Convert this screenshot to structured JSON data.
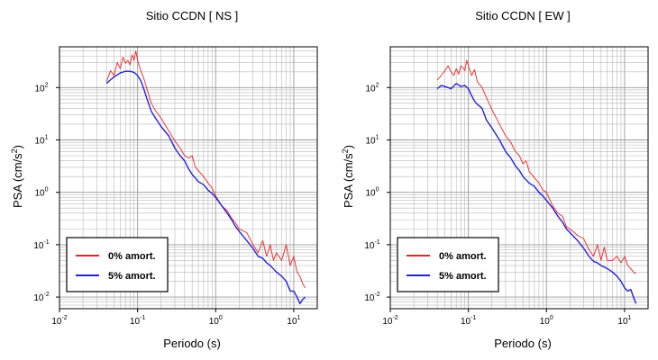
{
  "chart_data": [
    {
      "type": "line",
      "title": "Sitio CCDN [ NS ]",
      "xlabel": "Periodo (s)",
      "ylabel_main": "PSA (cm/s",
      "ylabel_sup": "2",
      "ylabel_close": ")",
      "xscale": "log",
      "yscale": "log",
      "xlim": [
        0.01,
        20
      ],
      "ylim": [
        0.006,
        600
      ],
      "grid": true,
      "legend_position": "bottom-left",
      "x_ticks": [
        {
          "base": "10",
          "exp": "-2"
        },
        {
          "base": "10",
          "exp": "-1"
        },
        {
          "base": "10",
          "exp": "0"
        },
        {
          "base": "10",
          "exp": "1"
        }
      ],
      "y_ticks": [
        {
          "base": "10",
          "exp": "-2"
        },
        {
          "base": "10",
          "exp": "-1"
        },
        {
          "base": "10",
          "exp": "0"
        },
        {
          "base": "10",
          "exp": "1"
        },
        {
          "base": "10",
          "exp": "2"
        }
      ],
      "series": [
        {
          "name": "0% amort.",
          "color": "#ee2222",
          "x": [
            0.04,
            0.045,
            0.05,
            0.055,
            0.06,
            0.065,
            0.07,
            0.075,
            0.08,
            0.085,
            0.09,
            0.095,
            0.1,
            0.11,
            0.12,
            0.13,
            0.15,
            0.17,
            0.2,
            0.25,
            0.3,
            0.35,
            0.4,
            0.45,
            0.5,
            0.55,
            0.6,
            0.7,
            0.8,
            0.9,
            1.0,
            1.2,
            1.4,
            1.6,
            1.8,
            2.0,
            2.5,
            3.0,
            3.5,
            4.0,
            4.5,
            5.0,
            5.5,
            6.0,
            7.0,
            8.0,
            9.0,
            10.0,
            11.0,
            12.0,
            13.0,
            14.0
          ],
          "y": [
            130,
            210,
            170,
            300,
            230,
            380,
            290,
            330,
            270,
            420,
            330,
            500,
            330,
            210,
            150,
            100,
            50,
            36,
            26,
            15,
            9.5,
            7,
            5,
            4.5,
            5,
            3,
            2.6,
            2.0,
            1.5,
            1.2,
            0.85,
            0.55,
            0.45,
            0.32,
            0.26,
            0.2,
            0.17,
            0.1,
            0.07,
            0.12,
            0.06,
            0.1,
            0.05,
            0.07,
            0.05,
            0.1,
            0.04,
            0.06,
            0.03,
            0.025,
            0.018,
            0.015
          ]
        },
        {
          "name": "5% amort.",
          "color": "#2222dd",
          "x": [
            0.04,
            0.045,
            0.05,
            0.06,
            0.07,
            0.08,
            0.09,
            0.1,
            0.11,
            0.12,
            0.13,
            0.15,
            0.17,
            0.2,
            0.25,
            0.3,
            0.35,
            0.4,
            0.45,
            0.5,
            0.6,
            0.7,
            0.8,
            0.9,
            1.0,
            1.2,
            1.4,
            1.6,
            1.8,
            2.0,
            2.5,
            3.0,
            3.5,
            4.0,
            4.5,
            5.0,
            6.0,
            7.0,
            8.0,
            9.0,
            10.0,
            11.0,
            12.0,
            13.0,
            14.0
          ],
          "y": [
            120,
            140,
            160,
            190,
            205,
            205,
            195,
            170,
            135,
            95,
            65,
            35,
            26,
            18,
            12,
            7,
            5,
            4,
            2.8,
            2.2,
            1.6,
            1.4,
            1.1,
            0.95,
            0.8,
            0.55,
            0.4,
            0.3,
            0.22,
            0.18,
            0.12,
            0.085,
            0.06,
            0.055,
            0.045,
            0.04,
            0.03,
            0.025,
            0.02,
            0.013,
            0.013,
            0.01,
            0.0075,
            0.009,
            0.01
          ]
        }
      ]
    },
    {
      "type": "line",
      "title": "Sitio CCDN [ EW ]",
      "xlabel": "Periodo (s)",
      "ylabel_main": "PSA (cm/s",
      "ylabel_sup": "2",
      "ylabel_close": ")",
      "xscale": "log",
      "yscale": "log",
      "xlim": [
        0.01,
        20
      ],
      "ylim": [
        0.006,
        600
      ],
      "grid": true,
      "legend_position": "bottom-left",
      "x_ticks": [
        {
          "base": "10",
          "exp": "-2"
        },
        {
          "base": "10",
          "exp": "-1"
        },
        {
          "base": "10",
          "exp": "0"
        },
        {
          "base": "10",
          "exp": "1"
        }
      ],
      "y_ticks": [
        {
          "base": "10",
          "exp": "-2"
        },
        {
          "base": "10",
          "exp": "-1"
        },
        {
          "base": "10",
          "exp": "0"
        },
        {
          "base": "10",
          "exp": "1"
        },
        {
          "base": "10",
          "exp": "2"
        }
      ],
      "series": [
        {
          "name": "0% amort.",
          "color": "#ee2222",
          "x": [
            0.04,
            0.045,
            0.05,
            0.055,
            0.06,
            0.065,
            0.07,
            0.075,
            0.08,
            0.085,
            0.09,
            0.095,
            0.1,
            0.11,
            0.12,
            0.13,
            0.15,
            0.17,
            0.2,
            0.25,
            0.3,
            0.35,
            0.4,
            0.45,
            0.5,
            0.55,
            0.6,
            0.7,
            0.8,
            0.9,
            1.0,
            1.2,
            1.4,
            1.6,
            1.8,
            2.0,
            2.5,
            3.0,
            3.5,
            4.0,
            4.5,
            5.0,
            5.5,
            6.0,
            7.0,
            8.0,
            9.0,
            10.0,
            11.0,
            12.0,
            13.0,
            14.0
          ],
          "y": [
            140,
            170,
            210,
            260,
            200,
            170,
            230,
            180,
            260,
            240,
            210,
            330,
            260,
            170,
            220,
            130,
            100,
            65,
            38,
            20,
            12,
            9,
            6,
            5,
            3.5,
            4,
            2.5,
            1.9,
            1.5,
            1.1,
            1.0,
            0.55,
            0.4,
            0.35,
            0.22,
            0.2,
            0.15,
            0.13,
            0.08,
            0.06,
            0.1,
            0.05,
            0.09,
            0.05,
            0.05,
            0.06,
            0.045,
            0.06,
            0.04,
            0.035,
            0.03,
            0.028
          ]
        },
        {
          "name": "5% amort.",
          "color": "#2222dd",
          "x": [
            0.04,
            0.045,
            0.05,
            0.055,
            0.06,
            0.07,
            0.08,
            0.09,
            0.1,
            0.11,
            0.12,
            0.13,
            0.15,
            0.17,
            0.2,
            0.25,
            0.3,
            0.35,
            0.4,
            0.45,
            0.5,
            0.6,
            0.7,
            0.8,
            0.9,
            1.0,
            1.2,
            1.4,
            1.6,
            1.8,
            2.0,
            2.5,
            3.0,
            3.5,
            4.0,
            4.5,
            5.0,
            6.0,
            7.0,
            8.0,
            9.0,
            10.0,
            11.0,
            12.0,
            13.0,
            14.0
          ],
          "y": [
            95,
            110,
            105,
            100,
            95,
            120,
            105,
            110,
            95,
            70,
            55,
            48,
            40,
            24,
            17,
            10,
            6,
            4.5,
            3.2,
            2.6,
            2.0,
            1.5,
            1.3,
            1.0,
            0.85,
            0.7,
            0.5,
            0.35,
            0.27,
            0.2,
            0.17,
            0.12,
            0.085,
            0.06,
            0.048,
            0.045,
            0.04,
            0.035,
            0.03,
            0.025,
            0.02,
            0.015,
            0.013,
            0.014,
            0.01,
            0.0075
          ]
        }
      ]
    }
  ]
}
